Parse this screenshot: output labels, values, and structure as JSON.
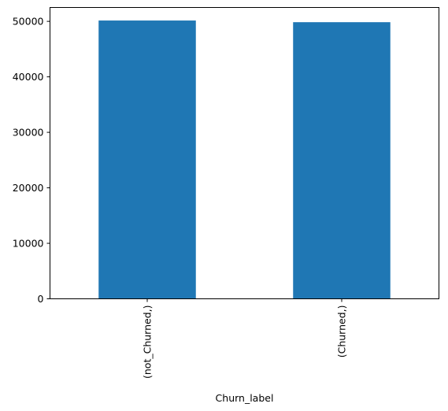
{
  "chart_data": {
    "type": "bar",
    "title": "",
    "xlabel": "Churn_label",
    "ylabel": "",
    "categories": [
      "(not_Churned,)",
      "(Churned,)"
    ],
    "values": [
      50150,
      49850
    ],
    "ylim": [
      0,
      52500
    ],
    "yticks": [
      0,
      10000,
      20000,
      30000,
      40000,
      50000
    ],
    "ytick_labels": [
      "0",
      "10000",
      "20000",
      "30000",
      "40000",
      "50000"
    ],
    "bar_color": "#1f77b4",
    "grid": false,
    "legend": "none"
  }
}
